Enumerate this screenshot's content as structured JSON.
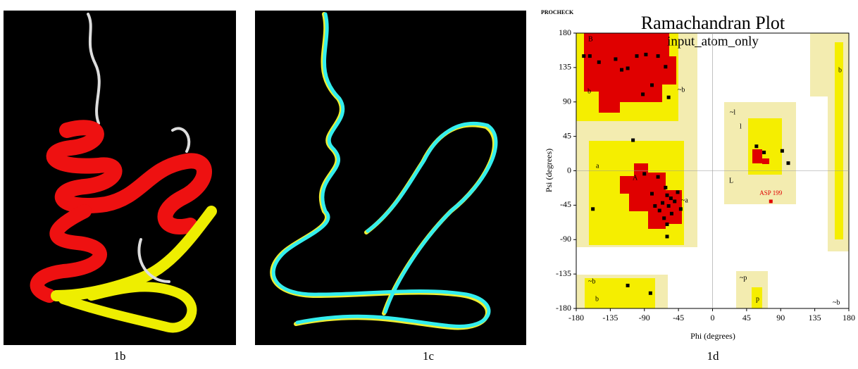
{
  "panels": [
    {
      "label": "1b"
    },
    {
      "label": "1c"
    },
    {
      "label": "1d"
    }
  ],
  "chart_data": {
    "type": "scatter",
    "brand": "PROCHECK",
    "title": "Ramachandran Plot",
    "subtitle": "input_atom_only",
    "x_label": "Phi (degrees)",
    "y_label": "Psi (degrees)",
    "xlim": [
      -180,
      180
    ],
    "ylim": [
      -180,
      180
    ],
    "xticks": [
      -180,
      -135,
      -90,
      -45,
      0,
      45,
      90,
      135,
      180
    ],
    "yticks": [
      -180,
      -135,
      -90,
      -45,
      0,
      45,
      90,
      135,
      180
    ],
    "color": "#000000",
    "x": [
      -170,
      -162,
      -150,
      -128,
      -120,
      -112,
      -100,
      -88,
      -72,
      -62,
      -80,
      -92,
      -58,
      -105,
      -72,
      -90,
      -62,
      -60,
      -55,
      -66,
      -50,
      -46,
      -58,
      -70,
      -80,
      -76,
      -54,
      -64,
      -42,
      -60,
      -60,
      -158,
      58,
      68,
      92,
      100,
      -112,
      -82
    ],
    "y": [
      150,
      150,
      142,
      146,
      132,
      134,
      150,
      152,
      150,
      136,
      112,
      100,
      96,
      40,
      -8,
      -4,
      -22,
      -32,
      -36,
      -42,
      -40,
      -28,
      -46,
      -52,
      -30,
      -46,
      -56,
      -62,
      -50,
      -70,
      -86,
      -50,
      32,
      24,
      26,
      10,
      -150,
      -160
    ],
    "highlight": {
      "label": "ASP 199",
      "x": 77,
      "y": -40,
      "color": "#e00000"
    },
    "region_labels": [
      "B",
      "b",
      "A",
      "a",
      "L",
      "l",
      "~b",
      "~a",
      "~l",
      "p",
      "~p",
      "b",
      "~b",
      "b",
      "~b"
    ]
  }
}
